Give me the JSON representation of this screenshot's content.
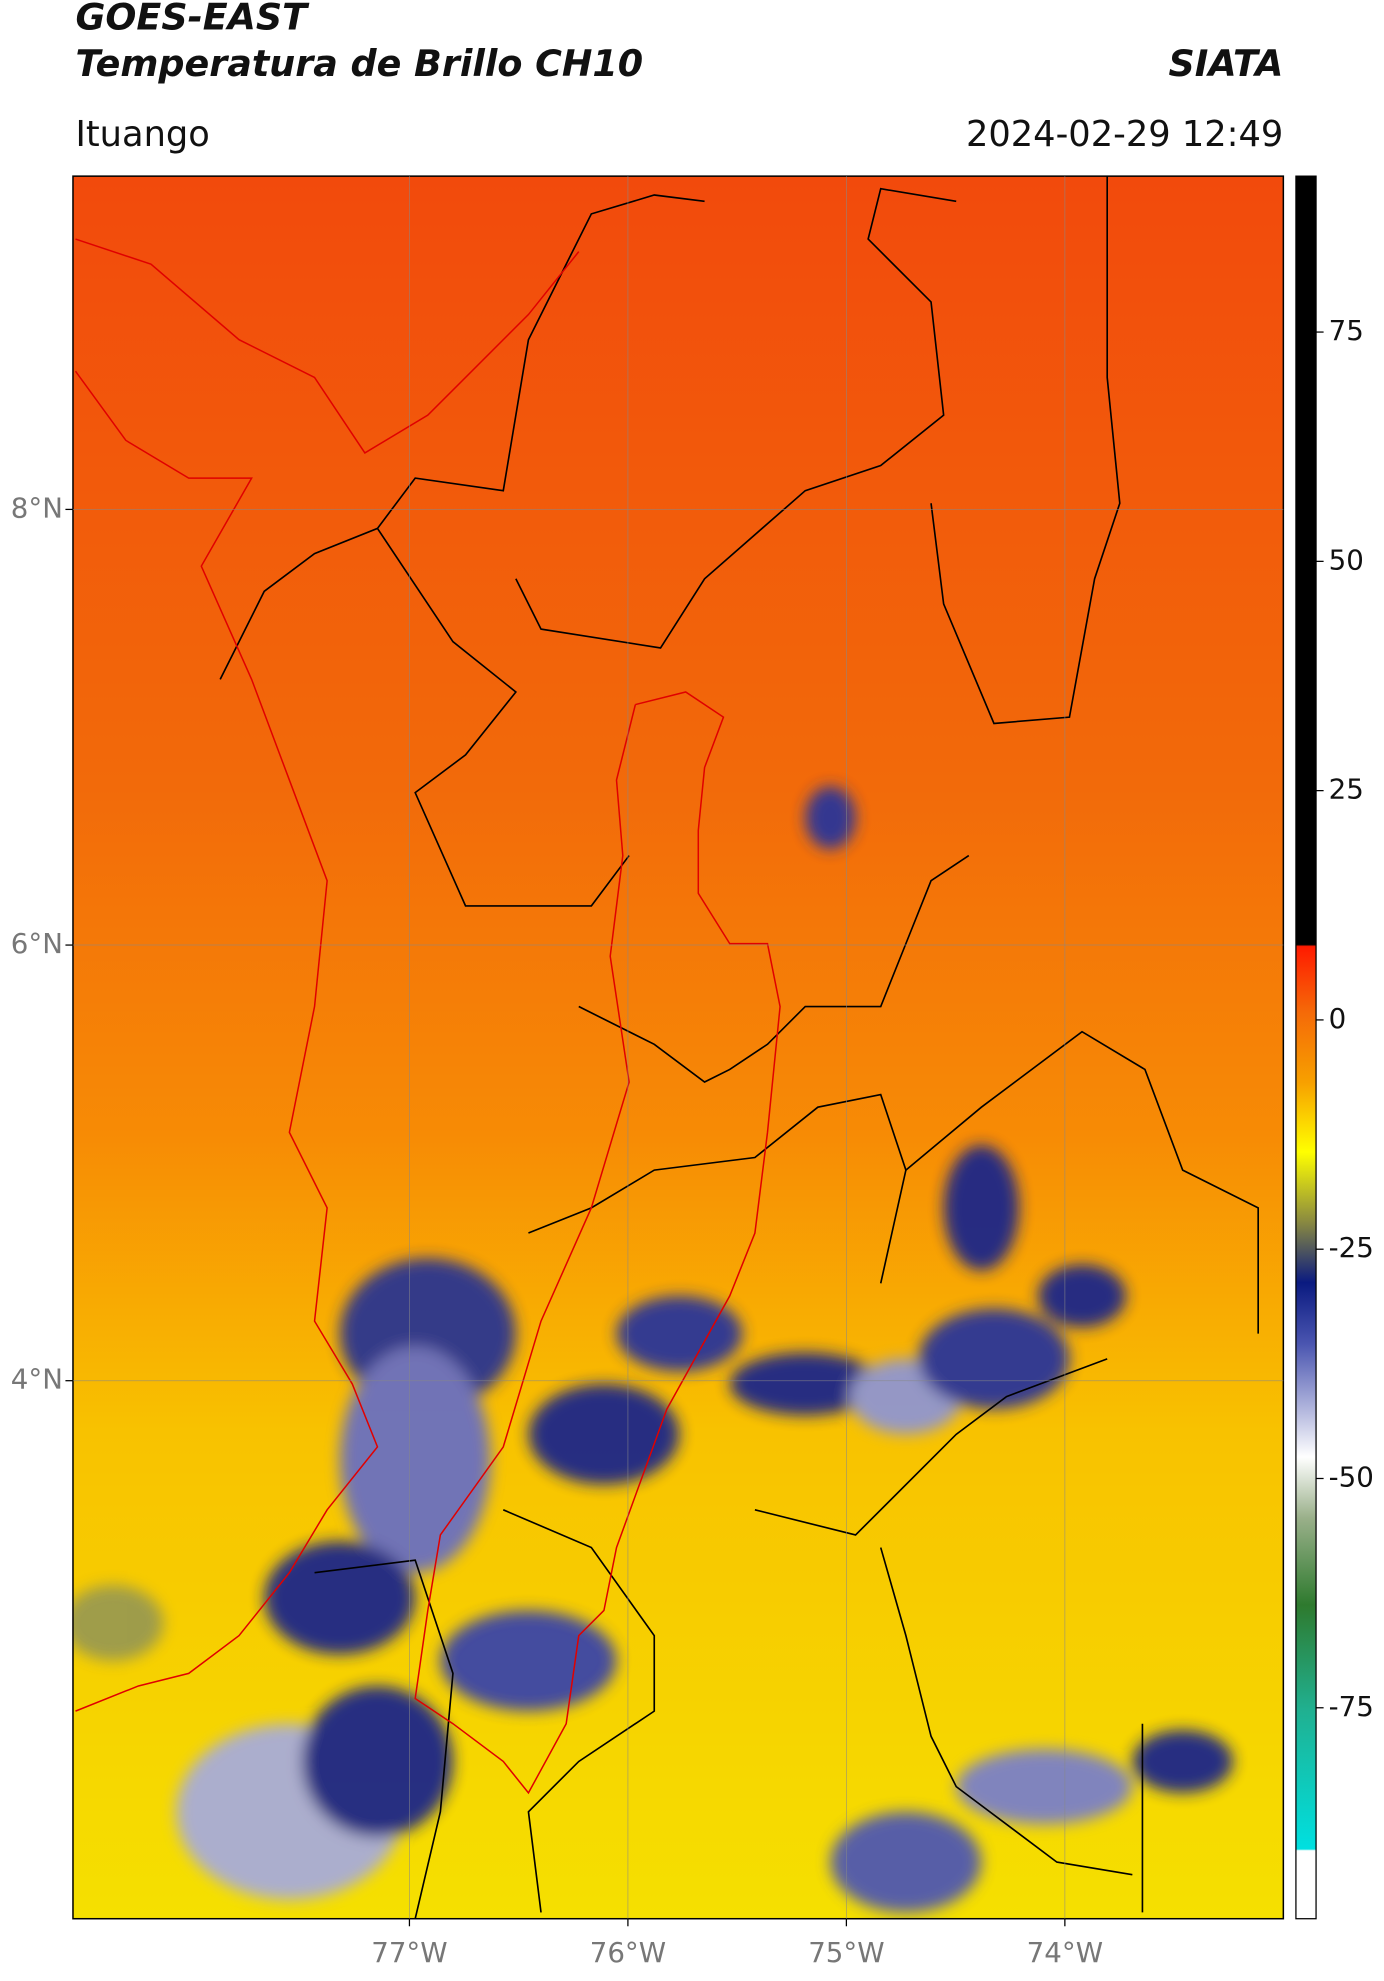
{
  "header": {
    "title": "GOES-EAST",
    "subtitle": "Temperatura de Brillo CH10",
    "source": "SIATA",
    "location": "Ituango",
    "datetime": "2024-02-29 12:49"
  },
  "map": {
    "lat_range": [
      1.53,
      9.53
    ],
    "lon_range": [
      -78.54,
      -73.0
    ],
    "lat_ticks": [
      {
        "value": 8,
        "label": "8°N"
      },
      {
        "value": 6,
        "label": "6°N"
      },
      {
        "value": 4,
        "label": "4°N"
      }
    ],
    "lon_ticks": [
      {
        "value": -77,
        "label": "77°W"
      },
      {
        "value": -76,
        "label": "76°W"
      },
      {
        "value": -75,
        "label": "75°W"
      },
      {
        "value": -74,
        "label": "74°W"
      }
    ],
    "grid": true
  },
  "colorbar": {
    "range": [
      -98,
      92
    ],
    "ticks": [
      75,
      50,
      25,
      0,
      -25,
      -50,
      -75
    ]
  }
}
